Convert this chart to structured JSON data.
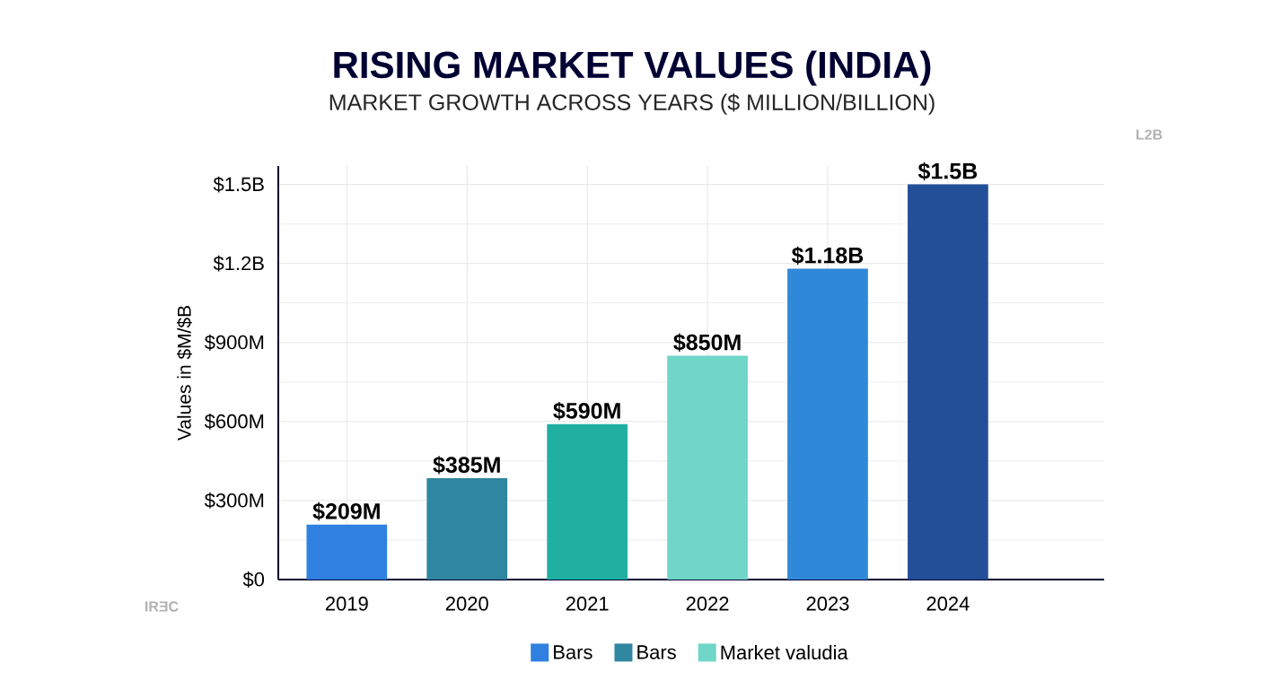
{
  "chart_data": {
    "type": "bar",
    "title": "RISING MARKET VALUES (INDIA)",
    "subtitle": "MARKET GROWTH ACROSS YEARS ($ MILLION/BILLION)",
    "ylabel": "Values in $M/$B",
    "categories": [
      "2019",
      "2020",
      "2021",
      "2022",
      "2023",
      "2024"
    ],
    "series": [
      {
        "name": "Bars",
        "color": "#2f80e0",
        "colors": [
          "#2f80e0",
          null,
          null,
          null,
          "#2f88d8",
          "#234f98"
        ],
        "values": [
          209000000,
          null,
          null,
          null,
          1180000000,
          1500000000
        ],
        "value_labels": [
          "$209M",
          null,
          null,
          null,
          "$1.18B",
          "$1.5B"
        ]
      },
      {
        "name": "Bars",
        "color": "#2e86a0",
        "colors": [
          null,
          "#2e86a0",
          "#1fb0a2",
          null,
          null,
          null
        ],
        "values": [
          null,
          385000000,
          590000000,
          null,
          null,
          null
        ],
        "value_labels": [
          null,
          "$385M",
          "$590M",
          null,
          null,
          null
        ]
      },
      {
        "name": "Market valudia",
        "color": "#6fd6c8",
        "colors": [
          null,
          null,
          null,
          "#6fd6c8",
          null,
          null
        ],
        "values": [
          null,
          null,
          null,
          850000000,
          null,
          null
        ],
        "value_labels": [
          null,
          null,
          null,
          "$850M",
          null,
          null
        ]
      }
    ],
    "ylim": [
      0,
      1570000000
    ],
    "yticks": [
      {
        "value": 0,
        "label": "$0"
      },
      {
        "value": 300000000,
        "label": "$300M"
      },
      {
        "value": 600000000,
        "label": "$600M"
      },
      {
        "value": 900000000,
        "label": "$900M"
      },
      {
        "value": 1200000000,
        "label": "$1.2B"
      },
      {
        "value": 1500000000,
        "label": "$1.5B"
      }
    ],
    "grid": true,
    "legend": "bottom",
    "annotations": [
      "L2B",
      "IRƎC"
    ]
  }
}
